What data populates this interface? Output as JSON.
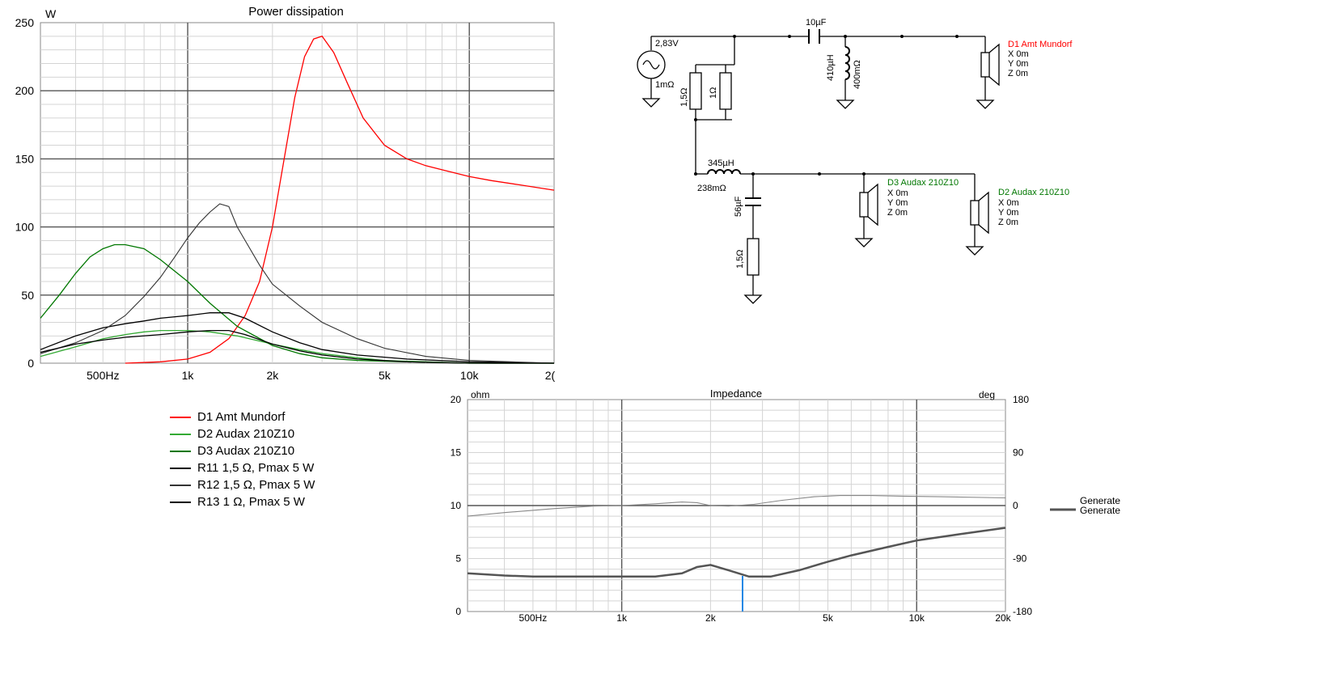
{
  "colors": {
    "red": "#ff0000",
    "green": "#008800",
    "black": "#000000",
    "grid": "#d8d8d8",
    "gridMajor": "#555555",
    "blueCursor": "#1e88e5"
  },
  "power_chart": {
    "title": "Power dissipation",
    "unit": "W",
    "yticks": [
      "250",
      "200",
      "150",
      "100",
      "50",
      "0"
    ],
    "xticks": [
      "500Hz",
      "1k",
      "2k",
      "5k",
      "10k",
      "2("
    ]
  },
  "impedance_chart": {
    "title": "Impedance",
    "left_unit": "ohm",
    "right_unit": "deg",
    "yticks_left": [
      "20",
      "15",
      "10",
      "5",
      "0"
    ],
    "yticks_right": [
      "180",
      "90",
      "0",
      "-90",
      "-180"
    ],
    "xticks": [
      "500Hz",
      "1k",
      "2k",
      "5k",
      "10k",
      "20k"
    ],
    "legend": [
      "Generate",
      "Generate"
    ]
  },
  "legend": [
    {
      "label": "D1 Amt Mundorf",
      "color": "#ff0000"
    },
    {
      "label": "D2 Audax 210Z10",
      "color": "#33aa33"
    },
    {
      "label": "D3 Audax 210Z10",
      "color": "#007700"
    },
    {
      "label": "R11 1,5 Ω, Pmax 5 W",
      "color": "#000000"
    },
    {
      "label": "R12 1,5 Ω, Pmax 5 W",
      "color": "#333333"
    },
    {
      "label": "R13 1 Ω, Pmax 5 W",
      "color": "#000000"
    }
  ],
  "schematic": {
    "source_voltage": "2,83V",
    "source_r": "1mΩ",
    "c1": "10µF",
    "l1": "410µH",
    "l1_r": "400mΩ",
    "r_a": "1,5Ω",
    "r_b": "1Ω",
    "l2": "345µH",
    "l2_r": "238mΩ",
    "c2": "56µF",
    "r_c": "1,5Ω",
    "d1_name": "D1 Amt Mundorf",
    "d2_name": "D2 Audax 210Z10",
    "d3_name": "D3 Audax 210Z10",
    "pos": [
      "X 0m",
      "Y 0m",
      "Z 0m"
    ]
  },
  "chart_data": [
    {
      "type": "line",
      "title": "Power dissipation",
      "ylabel": "W",
      "xscale": "log",
      "xlim": [
        300,
        20000
      ],
      "ylim": [
        0,
        250
      ],
      "grid": true,
      "legend_placement": "below",
      "series": [
        {
          "name": "D1 Amt Mundorf",
          "x": [
            600,
            800,
            1000,
            1200,
            1400,
            1600,
            1800,
            2000,
            2200,
            2400,
            2600,
            2800,
            3000,
            3300,
            3700,
            4200,
            5000,
            6000,
            7000,
            8000,
            10000,
            12000,
            15000,
            20000
          ],
          "y": [
            0,
            1,
            3,
            8,
            18,
            35,
            60,
            100,
            150,
            195,
            225,
            238,
            240,
            228,
            205,
            180,
            160,
            150,
            145,
            142,
            137,
            134,
            131,
            127
          ]
        },
        {
          "name": "D2 Audax 210Z10",
          "x": [
            300,
            400,
            500,
            600,
            700,
            800,
            1000,
            1200,
            1500,
            2000,
            2500,
            3000,
            4000,
            5000,
            7000,
            10000,
            20000
          ],
          "y": [
            5,
            12,
            18,
            21,
            23,
            24,
            24,
            23,
            20,
            14,
            10,
            7,
            4,
            2,
            1,
            0,
            0
          ]
        },
        {
          "name": "D3 Audax 210Z10",
          "x": [
            300,
            350,
            400,
            450,
            500,
            550,
            600,
            700,
            800,
            1000,
            1200,
            1500,
            2000,
            2500,
            3000,
            4000,
            6000,
            10000,
            20000
          ],
          "y": [
            33,
            50,
            66,
            78,
            84,
            87,
            87,
            84,
            76,
            60,
            44,
            27,
            13,
            7,
            4,
            2,
            1,
            0,
            0
          ]
        },
        {
          "name": "R11 1,5 Ω, Pmax 5 W",
          "x": [
            300,
            400,
            500,
            600,
            700,
            800,
            1000,
            1200,
            1400,
            1600,
            2000,
            2500,
            3000,
            4000,
            6000,
            10000,
            20000
          ],
          "y": [
            10,
            20,
            26,
            29,
            31,
            33,
            35,
            37,
            37,
            33,
            23,
            15,
            10,
            6,
            3,
            1,
            0
          ]
        },
        {
          "name": "R12 1,5 Ω, Pmax 5 W",
          "x": [
            300,
            400,
            500,
            600,
            700,
            800,
            900,
            1000,
            1100,
            1200,
            1300,
            1400,
            1500,
            1600,
            1800,
            2000,
            2500,
            3000,
            4000,
            5000,
            7000,
            10000,
            20000
          ],
          "y": [
            7,
            15,
            24,
            35,
            49,
            63,
            78,
            92,
            103,
            111,
            117,
            115,
            100,
            90,
            72,
            58,
            42,
            30,
            18,
            11,
            5,
            2,
            0
          ]
        },
        {
          "name": "R13 1 Ω, Pmax 5 W",
          "x": [
            300,
            400,
            500,
            600,
            800,
            1000,
            1200,
            1400,
            1600,
            2000,
            2500,
            3000,
            4000,
            6000,
            10000,
            20000
          ],
          "y": [
            8,
            14,
            17,
            19,
            21,
            23,
            24,
            24,
            21,
            14,
            9,
            6,
            3,
            1,
            0,
            0
          ]
        }
      ]
    },
    {
      "type": "line",
      "title": "Impedance",
      "ylabel": "ohm",
      "xscale": "log",
      "xlim": [
        300,
        20000
      ],
      "ylim": [
        0,
        20
      ],
      "y2lim": [
        -180,
        180
      ],
      "grid": true,
      "series": [
        {
          "name": "Generate",
          "axis": "left",
          "x": [
            300,
            400,
            500,
            700,
            1000,
            1300,
            1600,
            1800,
            2000,
            2300,
            2700,
            3200,
            4000,
            5000,
            6000,
            8000,
            10000,
            14000,
            20000
          ],
          "y": [
            3.6,
            3.4,
            3.3,
            3.3,
            3.3,
            3.3,
            3.6,
            4.2,
            4.4,
            3.9,
            3.3,
            3.3,
            3.9,
            4.7,
            5.3,
            6.1,
            6.7,
            7.3,
            7.9
          ]
        },
        {
          "name": "Generate",
          "axis": "right",
          "x": [
            300,
            400,
            600,
            800,
            1000,
            1300,
            1600,
            1800,
            2000,
            2300,
            2800,
            3500,
            4500,
            5500,
            7000,
            9000,
            12000,
            20000
          ],
          "y": [
            -18,
            -12,
            -5,
            -1,
            0,
            3,
            6,
            5,
            0,
            -1,
            2,
            9,
            15,
            17,
            17,
            16,
            15,
            13
          ]
        }
      ]
    }
  ]
}
